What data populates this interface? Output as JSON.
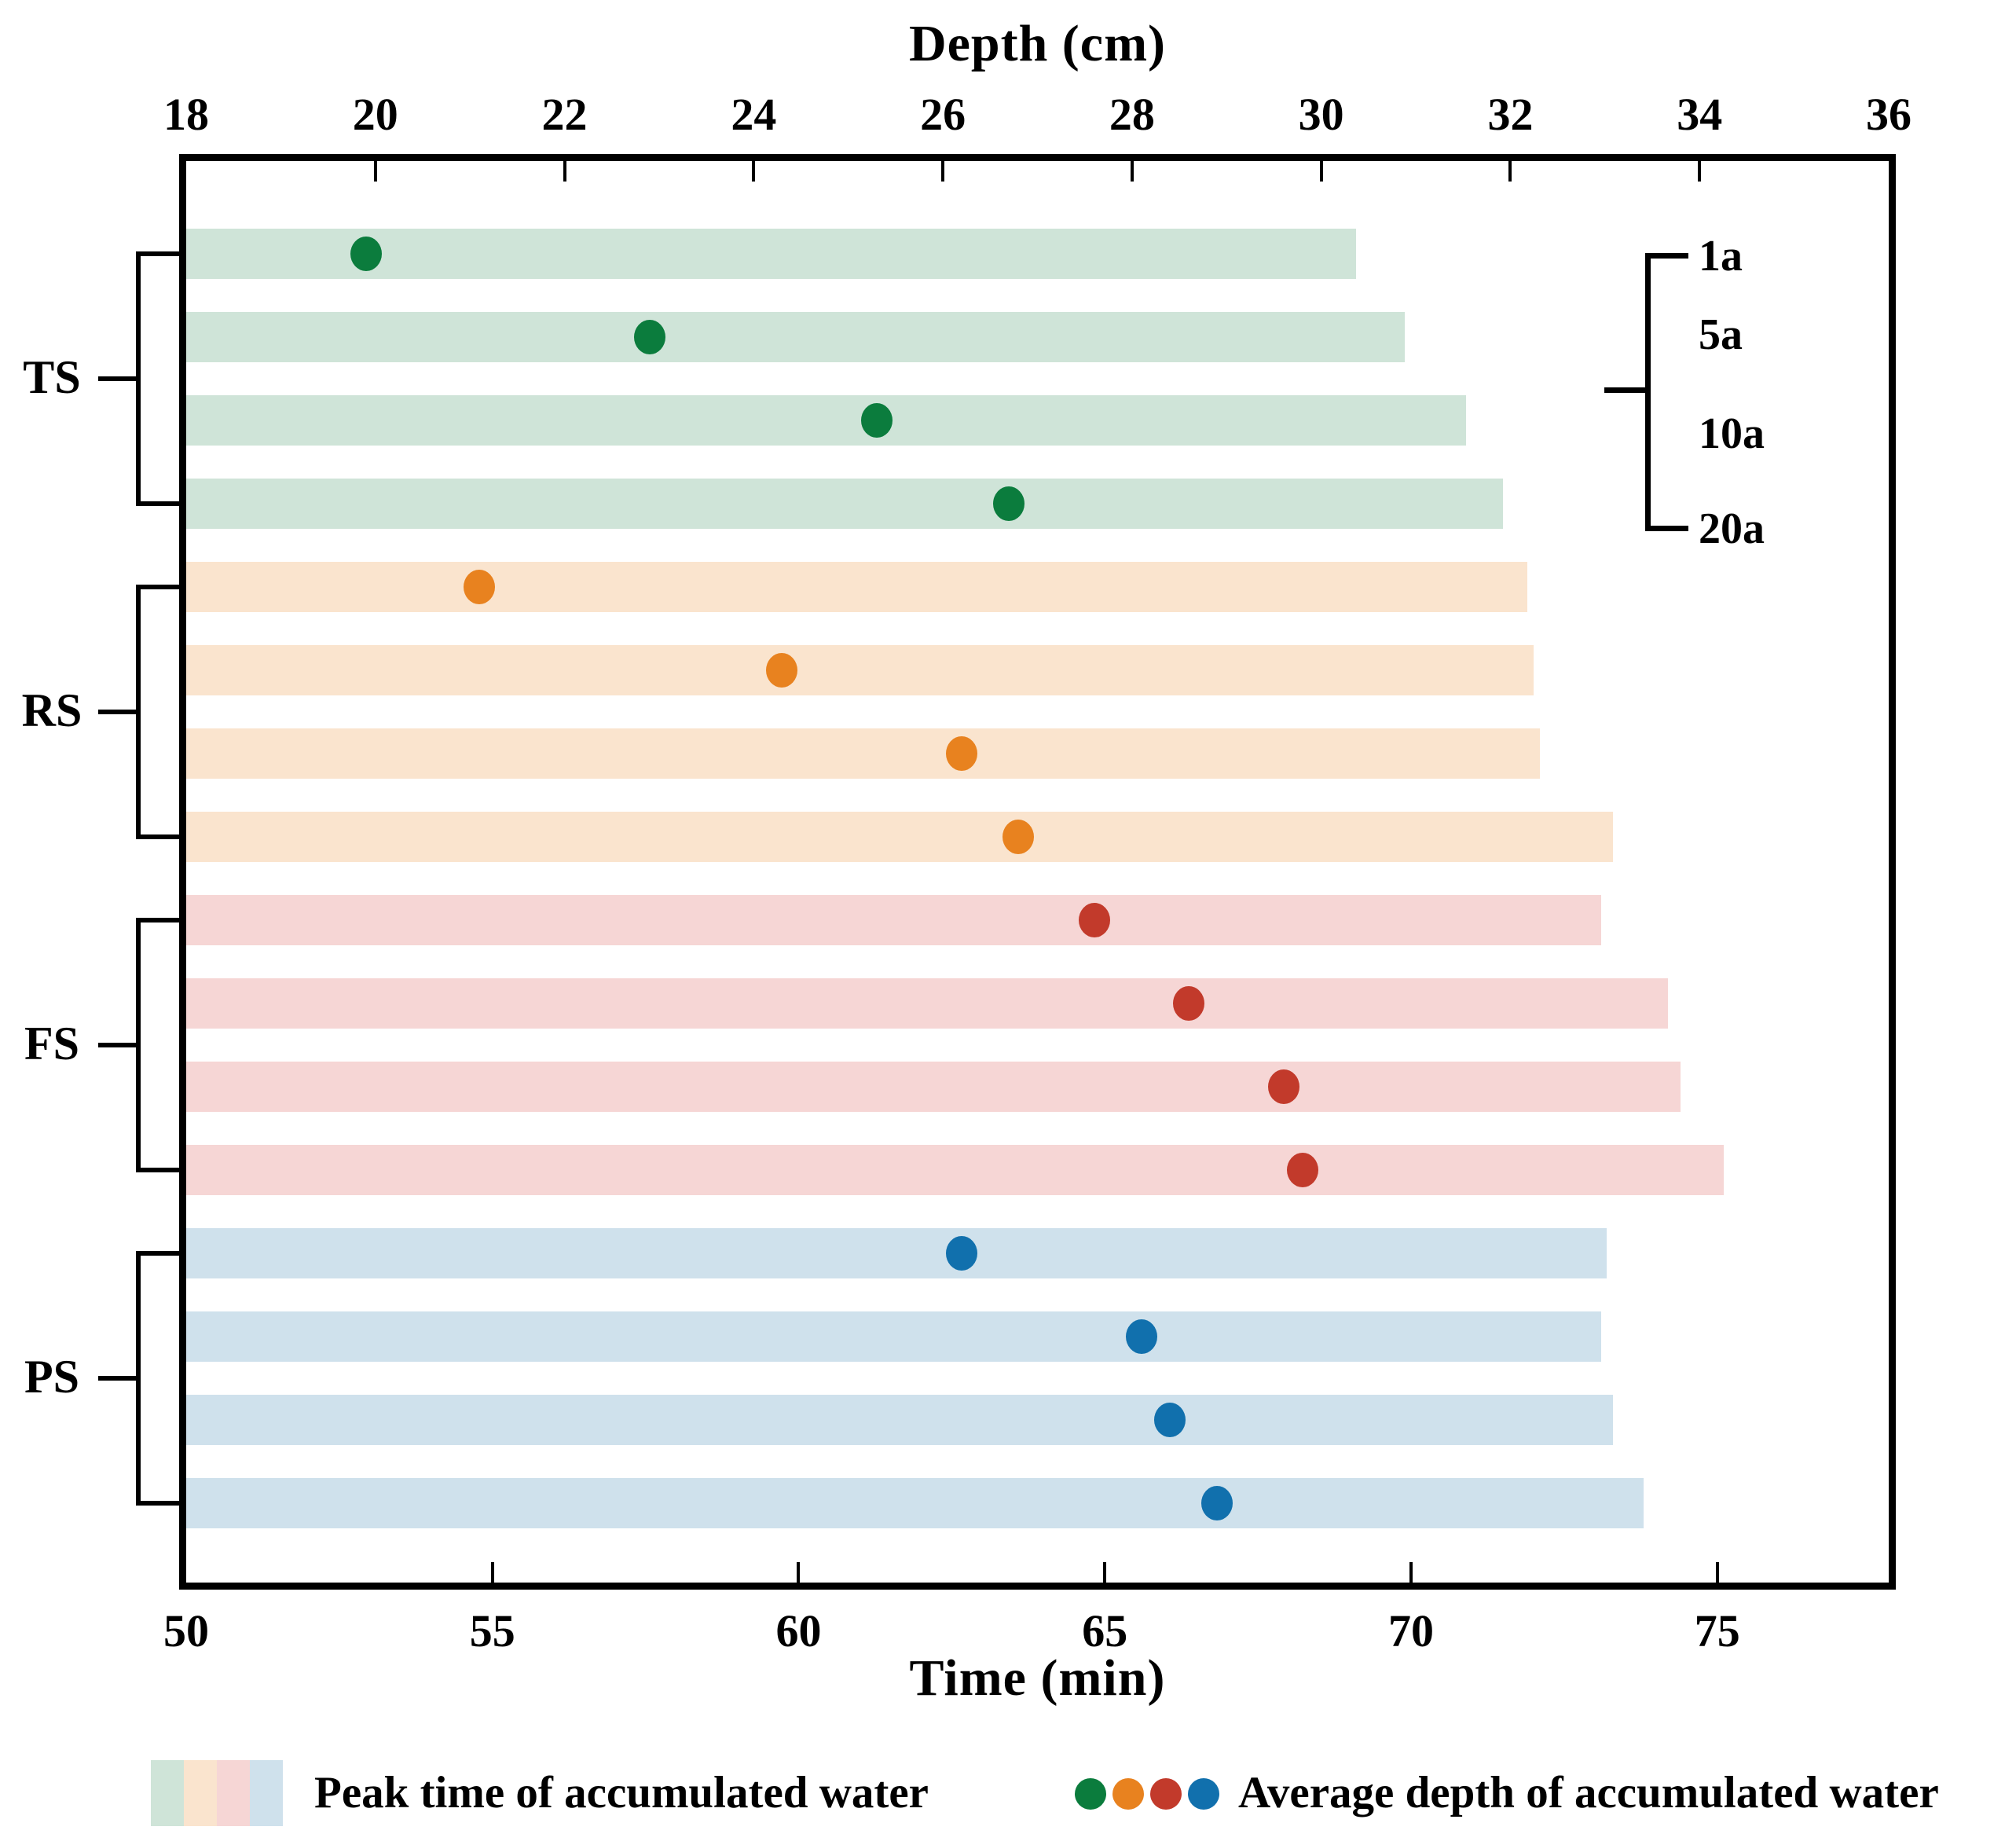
{
  "chart_data": {
    "type": "bar",
    "subtype": "horizontal grouped bars (peak time) with scatter overlay (average depth)",
    "orientation": "horizontal",
    "grid": false,
    "top_axis": {
      "label": "Depth (cm)",
      "min": 18,
      "max": 36,
      "ticks": [
        18,
        20,
        22,
        24,
        26,
        28,
        30,
        32,
        34,
        36
      ]
    },
    "bottom_axis": {
      "label": "Time (min)",
      "min": 50,
      "max": 77.8,
      "ticks": [
        50,
        55,
        60,
        65,
        70,
        75
      ]
    },
    "return_periods": [
      "1a",
      "5a",
      "10a",
      "20a"
    ],
    "groups": [
      {
        "name": "TS",
        "bar_color": "#cfe4d8",
        "dot_color": "#0b7c3d",
        "rows": [
          {
            "period": "1a",
            "peak_time_min": 69.1,
            "avg_depth_cm": 19.9
          },
          {
            "period": "5a",
            "peak_time_min": 69.9,
            "avg_depth_cm": 22.9
          },
          {
            "period": "10a",
            "peak_time_min": 70.9,
            "avg_depth_cm": 25.3
          },
          {
            "period": "20a",
            "peak_time_min": 71.5,
            "avg_depth_cm": 26.7
          }
        ]
      },
      {
        "name": "RS",
        "bar_color": "#fae4ce",
        "dot_color": "#e8821f",
        "rows": [
          {
            "period": "1a",
            "peak_time_min": 71.9,
            "avg_depth_cm": 21.1
          },
          {
            "period": "5a",
            "peak_time_min": 72.0,
            "avg_depth_cm": 24.3
          },
          {
            "period": "10a",
            "peak_time_min": 72.1,
            "avg_depth_cm": 26.2
          },
          {
            "period": "20a",
            "peak_time_min": 73.3,
            "avg_depth_cm": 26.8
          }
        ]
      },
      {
        "name": "FS",
        "bar_color": "#f6d6d5",
        "dot_color": "#c23a2b",
        "rows": [
          {
            "period": "1a",
            "peak_time_min": 73.1,
            "avg_depth_cm": 27.6
          },
          {
            "period": "5a",
            "peak_time_min": 74.2,
            "avg_depth_cm": 28.6
          },
          {
            "period": "10a",
            "peak_time_min": 74.4,
            "avg_depth_cm": 29.6
          },
          {
            "period": "20a",
            "peak_time_min": 75.1,
            "avg_depth_cm": 29.8
          }
        ]
      },
      {
        "name": "PS",
        "bar_color": "#cfe1ec",
        "dot_color": "#1170ad",
        "rows": [
          {
            "period": "1a",
            "peak_time_min": 73.2,
            "avg_depth_cm": 26.2
          },
          {
            "period": "5a",
            "peak_time_min": 73.1,
            "avg_depth_cm": 28.1
          },
          {
            "period": "10a",
            "peak_time_min": 73.3,
            "avg_depth_cm": 28.4
          },
          {
            "period": "20a",
            "peak_time_min": 73.8,
            "avg_depth_cm": 28.9
          }
        ]
      }
    ],
    "legend": {
      "bars_label": "Peak time of accumulated water",
      "dots_label": "Average depth of accumulated water"
    }
  }
}
